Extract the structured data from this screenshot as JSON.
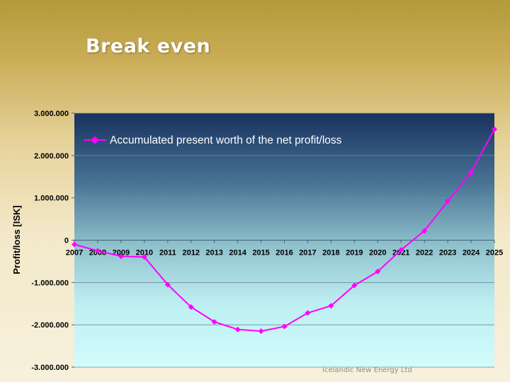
{
  "slide": {
    "title": "Break even",
    "footer": "Icelandic New Energy Ltd"
  },
  "chart_data": {
    "type": "line",
    "title": "",
    "xlabel": "",
    "ylabel": "Profit/loss [ISK]",
    "x": [
      "2007",
      "2008",
      "2009",
      "2010",
      "2011",
      "2012",
      "2013",
      "2014",
      "2015",
      "2016",
      "2017",
      "2018",
      "2019",
      "2020",
      "2021",
      "2022",
      "2023",
      "2024",
      "2025"
    ],
    "ylim": [
      -3000000,
      3000000
    ],
    "yticks": [
      3000000,
      2000000,
      1000000,
      0,
      -1000000,
      -2000000,
      -3000000
    ],
    "ytick_labels": [
      "3.000.000",
      "2.000.000",
      "1.000.000",
      "0",
      "-1.000.000",
      "-2.000.000",
      "-3.000.000"
    ],
    "grid": true,
    "legend_position": "top-left",
    "series": [
      {
        "name": "Accumulated present worth of the net profit/loss",
        "color": "#ff00ff",
        "values": [
          -100000,
          -250000,
          -380000,
          -400000,
          -1050000,
          -1580000,
          -1930000,
          -2110000,
          -2150000,
          -2040000,
          -1720000,
          -1550000,
          -1070000,
          -740000,
          -230000,
          220000,
          920000,
          1600000,
          2620000
        ]
      }
    ]
  }
}
